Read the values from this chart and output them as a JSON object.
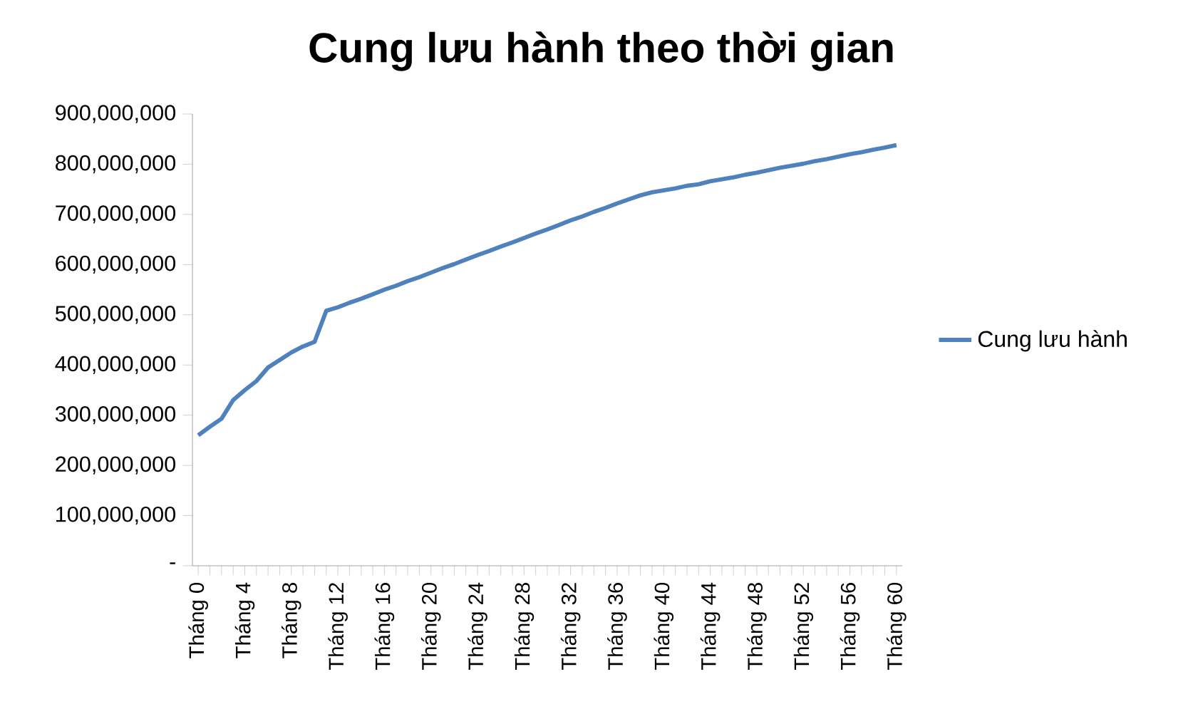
{
  "chart_data": {
    "type": "line",
    "title": "Cung lưu hành theo thời gian",
    "categories": [
      "Tháng 0",
      null,
      null,
      null,
      "Tháng 4",
      null,
      null,
      null,
      "Tháng 8",
      null,
      null,
      null,
      "Tháng 12",
      null,
      null,
      null,
      "Tháng 16",
      null,
      null,
      null,
      "Tháng 20",
      null,
      null,
      null,
      "Tháng 24",
      null,
      null,
      null,
      "Tháng 28",
      null,
      null,
      null,
      "Tháng 32",
      null,
      null,
      null,
      "Tháng 36",
      null,
      null,
      null,
      "Tháng 40",
      null,
      null,
      null,
      "Tháng 44",
      null,
      null,
      null,
      "Tháng 48",
      null,
      null,
      null,
      "Tháng 52",
      null,
      null,
      null,
      "Tháng 56",
      null,
      null,
      null,
      "Tháng 60"
    ],
    "series": [
      {
        "name": "Cung lưu hành",
        "color": "#4f81bd",
        "values": [
          260000000,
          277000000,
          293000000,
          330000000,
          350000000,
          368000000,
          395000000,
          410000000,
          425000000,
          437000000,
          446000000,
          508000000,
          515000000,
          524000000,
          532000000,
          541000000,
          550000000,
          558000000,
          567000000,
          575000000,
          584000000,
          593000000,
          601000000,
          610000000,
          619000000,
          627000000,
          636000000,
          644000000,
          653000000,
          662000000,
          670000000,
          679000000,
          688000000,
          696000000,
          705000000,
          713000000,
          722000000,
          730000000,
          738000000,
          744000000,
          748000000,
          752000000,
          757000000,
          760000000,
          766000000,
          770000000,
          774000000,
          779000000,
          783000000,
          788000000,
          793000000,
          797000000,
          801000000,
          806000000,
          810000000,
          815000000,
          820000000,
          824000000,
          829000000,
          833000000,
          838000000
        ]
      }
    ],
    "ylim": [
      0,
      900000000
    ],
    "yticks": [
      {
        "value": 0,
        "label": "-"
      },
      {
        "value": 100000000,
        "label": "100,000,000"
      },
      {
        "value": 200000000,
        "label": "200,000,000"
      },
      {
        "value": 300000000,
        "label": "300,000,000"
      },
      {
        "value": 400000000,
        "label": "400,000,000"
      },
      {
        "value": 500000000,
        "label": "500,000,000"
      },
      {
        "value": 600000000,
        "label": "600,000,000"
      },
      {
        "value": 700000000,
        "label": "700,000,000"
      },
      {
        "value": 800000000,
        "label": "800,000,000"
      },
      {
        "value": 900000000,
        "label": "900,000,000"
      }
    ],
    "legend": "right"
  }
}
